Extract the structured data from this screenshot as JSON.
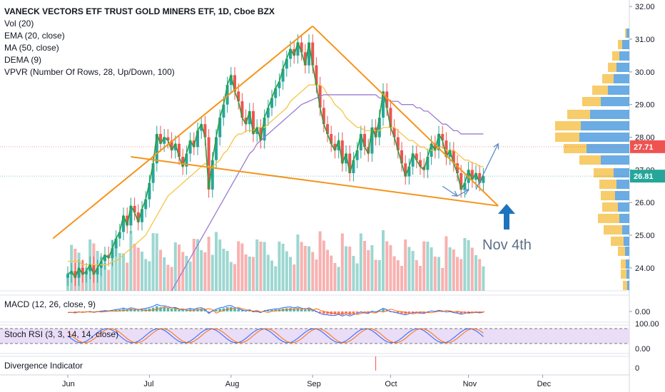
{
  "header": {
    "symbol_line": "VANECK VECTORS ETF TRUST GOLD MINERS ETF, 1D, Cboe BZX",
    "indicators": [
      "Vol (20)",
      "EMA (20, close)",
      "MA (50, close)",
      "DEMA (9)",
      "VPVR (Number Of Rows, 28, Up/Down, 100)"
    ]
  },
  "panes": {
    "macd_label": "MACD (12, 26, close, 9)",
    "stoch_label": "Stoch RSI (3, 3, 14, 14, close)",
    "divergence_label": "Divergence Indicator"
  },
  "annotation": {
    "text": "Nov 4th"
  },
  "colors": {
    "up": "#26a69a",
    "down": "#ef5350",
    "trend": "#f7931a",
    "ema": "#f5c542",
    "ma": "#9c7bd1",
    "dema": "#26a042",
    "arrow": "#5b8ec9",
    "blue_arrow": "#1e73be"
  },
  "chart_data": {
    "type": "candlestick",
    "price_axis": {
      "ticks": [
        "32.00",
        "31.00",
        "30.00",
        "29.00",
        "28.00",
        "27.00",
        "26.00",
        "25.00",
        "24.00"
      ],
      "ylim": [
        23.3,
        32.2
      ]
    },
    "price_labels": [
      {
        "value": 27.71,
        "text": "27.71",
        "color": "#ef5350"
      },
      {
        "value": 26.81,
        "text": "26.81",
        "color": "#26a69a"
      }
    ],
    "time_axis": {
      "labels": [
        "Jun",
        "Jul",
        "Aug",
        "Sep",
        "Oct",
        "Nov",
        "Dec"
      ],
      "positions": [
        0,
        22,
        44,
        66,
        87,
        108,
        128
      ]
    },
    "macd_axis": {
      "ticks": [
        "0.00"
      ]
    },
    "stoch_axis": {
      "ticks": [
        "100.00",
        "0.00"
      ]
    },
    "div_axis": {
      "ticks": [
        "0"
      ]
    },
    "closes": [
      23.8,
      23.9,
      23.7,
      24.0,
      23.8,
      23.9,
      24.1,
      23.8,
      24.0,
      24.2,
      24.4,
      24.3,
      24.6,
      24.9,
      25.1,
      25.6,
      25.3,
      25.9,
      25.7,
      25.4,
      25.8,
      26.1,
      26.6,
      27.2,
      28.1,
      27.8,
      28.0,
      27.9,
      27.6,
      27.8,
      27.4,
      27.1,
      27.5,
      27.9,
      27.7,
      28.2,
      28.4,
      28.0,
      26.4,
      27.3,
      28.0,
      28.6,
      29.0,
      29.6,
      29.9,
      29.4,
      29.1,
      28.6,
      28.4,
      28.8,
      28.1,
      28.3,
      27.9,
      28.6,
      28.9,
      29.2,
      29.5,
      29.7,
      30.1,
      30.4,
      30.7,
      30.5,
      30.9,
      30.6,
      30.2,
      30.9,
      30.2,
      29.6,
      28.9,
      28.4,
      28.1,
      27.8,
      27.6,
      27.9,
      27.2,
      27.5,
      26.9,
      27.3,
      27.6,
      28.1,
      27.7,
      27.5,
      28.3,
      28.0,
      28.6,
      29.4,
      28.9,
      28.3,
      28.0,
      27.6,
      27.2,
      26.8,
      27.1,
      27.5,
      27.3,
      27.1,
      27.0,
      27.4,
      27.8,
      27.6,
      28.1,
      27.9,
      27.4,
      27.6,
      27.2,
      26.9,
      26.4,
      26.6,
      27.0,
      26.7,
      26.9,
      26.6,
      26.81
    ],
    "ema": [
      24.2,
      24.2,
      24.2,
      24.2,
      24.1,
      24.1,
      24.1,
      24.1,
      24.1,
      24.1,
      24.1,
      24.1,
      24.2,
      24.2,
      24.3,
      24.4,
      24.5,
      24.6,
      24.7,
      24.8,
      24.9,
      25.0,
      25.2,
      25.4,
      25.6,
      25.8,
      26.0,
      26.2,
      26.3,
      26.4,
      26.5,
      26.6,
      26.7,
      26.8,
      26.9,
      27.0,
      27.1,
      27.2,
      27.1,
      27.1,
      27.2,
      27.3,
      27.5,
      27.6,
      27.8,
      28.0,
      28.1,
      28.1,
      28.2,
      28.2,
      28.2,
      28.3,
      28.3,
      28.3,
      28.4,
      28.5,
      28.6,
      28.7,
      28.8,
      28.9,
      29.1,
      29.2,
      29.3,
      29.4,
      29.5,
      29.6,
      29.6,
      29.6,
      29.6,
      29.5,
      29.3,
      29.2,
      29.0,
      28.9,
      28.8,
      28.6,
      28.5,
      28.4,
      28.3,
      28.3,
      28.2,
      28.2,
      28.2,
      28.2,
      28.2,
      28.3,
      28.3,
      28.3,
      28.3,
      28.2,
      28.1,
      28.0,
      27.9,
      27.9,
      27.8,
      27.7,
      27.7,
      27.6,
      27.6,
      27.6,
      27.7,
      27.7,
      27.6,
      27.6,
      27.6,
      27.5,
      27.4,
      27.3,
      27.3,
      27.2,
      27.2,
      27.1,
      27.1
    ],
    "ma_start": 28,
    "ma": [
      23.3,
      23.5,
      23.7,
      23.9,
      24.1,
      24.3,
      24.5,
      24.7,
      24.9,
      25.1,
      25.3,
      25.5,
      25.7,
      25.9,
      26.1,
      26.3,
      26.5,
      26.7,
      26.9,
      27.1,
      27.3,
      27.5,
      27.6,
      27.8,
      27.9,
      28.0,
      28.1,
      28.2,
      28.3,
      28.4,
      28.5,
      28.6,
      28.7,
      28.8,
      28.9,
      29.0,
      29.05,
      29.1,
      29.15,
      29.2,
      29.25,
      29.3,
      29.3,
      29.3,
      29.3,
      29.3,
      29.3,
      29.3,
      29.3,
      29.3,
      29.3,
      29.3,
      29.3,
      29.3,
      29.3,
      29.3,
      29.2,
      29.2,
      29.2,
      29.1,
      29.1,
      29.1,
      29.0,
      29.0,
      29.0,
      29.0,
      28.9,
      28.9,
      28.8,
      28.8,
      28.7,
      28.6,
      28.5,
      28.4,
      28.4,
      28.3,
      28.2,
      28.2,
      28.1,
      28.1,
      28.1,
      28.1,
      28.1,
      28.1,
      28.1
    ],
    "trendlines": [
      {
        "from": [
          -4,
          24.9
        ],
        "to": [
          66,
          31.4
        ]
      },
      {
        "from": [
          66,
          31.4
        ],
        "to": [
          116,
          25.9
        ]
      },
      {
        "from": [
          17,
          27.4
        ],
        "to": [
          116,
          25.9
        ]
      }
    ],
    "projection_arrows": [
      {
        "from": [
          101,
          26.5
        ],
        "to": [
          105,
          26.2
        ]
      },
      {
        "from": [
          105,
          26.2
        ],
        "to": [
          108,
          26.4
        ]
      },
      {
        "from": [
          110,
          26.4
        ],
        "to": [
          116,
          27.8
        ]
      }
    ]
  }
}
